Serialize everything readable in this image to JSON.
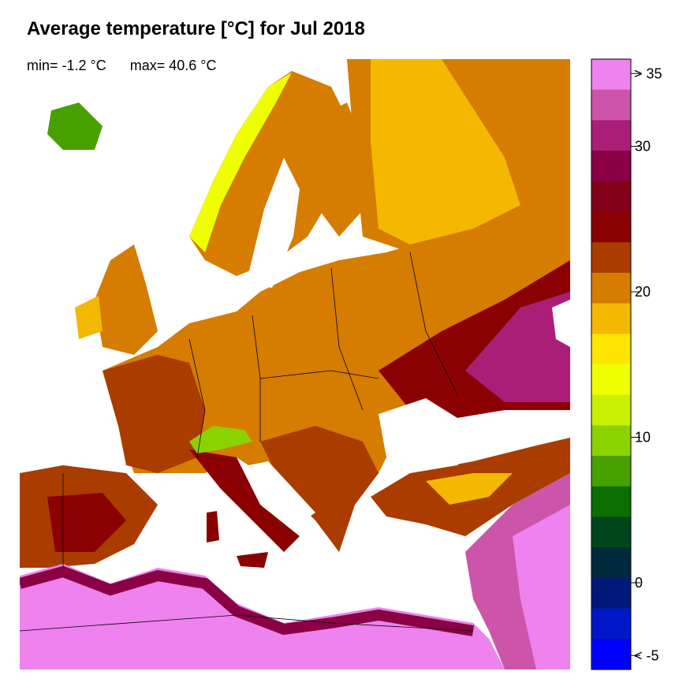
{
  "title": "Average temperature [°C] for Jul 2018",
  "stats": {
    "min": "min= -1.2 °C",
    "max": "max= 40.6 °C"
  },
  "legend": {
    "colors": [
      "#EE82EE",
      "#CC55AA",
      "#AA1E77",
      "#8B0045",
      "#820018",
      "#8B0000",
      "#AA3C00",
      "#D67C00",
      "#F4B800",
      "#FFE600",
      "#F0FF00",
      "#C8F000",
      "#8CD200",
      "#46A000",
      "#0A6E00",
      "#00461A",
      "#002A3C",
      "#00187A",
      "#0018C8",
      "#0000FF"
    ],
    "ticks": [
      {
        "label": "> 35",
        "value": 35
      },
      {
        "label": "30",
        "value": 30
      },
      {
        "label": "20",
        "value": 20
      },
      {
        "label": "10",
        "value": 10
      },
      {
        "label": "0",
        "value": 0
      },
      {
        "label": "< -5",
        "value": -5
      }
    ]
  },
  "map_colors": {
    "sea": "#FFFFFF",
    "hot_desert": "#EE82EE",
    "very_hot": "#CC55AA",
    "hot": "#8B0045",
    "warm_red": "#8B0000",
    "warm": "#AA3C00",
    "mild": "#D67C00",
    "cool": "#F4B800",
    "cooler": "#F0FF00",
    "cold": "#46A000",
    "border": "#000000"
  }
}
